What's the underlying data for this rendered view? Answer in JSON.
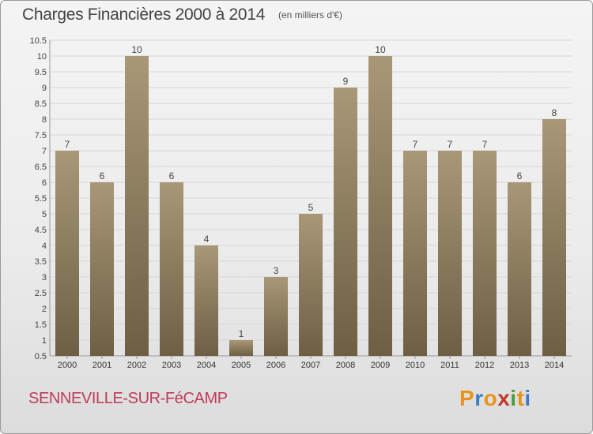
{
  "header": {
    "title": "Charges Financières 2000 à 2014",
    "subtitle": "(en milliers d'€)"
  },
  "footer": {
    "commune": "SENNEVILLE-SUR-FéCAMP",
    "logo_text": "Proxiti"
  },
  "colors": {
    "bar_top": "#a89878",
    "bar_bottom": "#6e5e43",
    "commune_text": "#c03a5a",
    "logo_letters": [
      "#e8941c",
      "#3a7fc4",
      "#e8941c",
      "#c0392b",
      "#4a9e3a",
      "#e8941c",
      "#3a7fc4"
    ]
  },
  "chart_data": {
    "type": "bar",
    "title": "Charges Financières 2000 à 2014",
    "subtitle": "(en milliers d'€)",
    "categories": [
      "2000",
      "2001",
      "2002",
      "2003",
      "2004",
      "2005",
      "2006",
      "2007",
      "2008",
      "2009",
      "2010",
      "2011",
      "2012",
      "2013",
      "2014"
    ],
    "values": [
      7,
      6,
      10,
      6,
      4,
      1,
      3,
      5,
      9,
      10,
      7,
      7,
      7,
      6,
      8
    ],
    "data_labels": [
      "7",
      "6",
      "10",
      "6",
      "4",
      "1",
      "3",
      "5",
      "9",
      "10",
      "7",
      "7",
      "7",
      "6",
      "8"
    ],
    "ylim": [
      0.5,
      10.5
    ],
    "yticks": [
      0.5,
      1,
      1.5,
      2,
      2.5,
      3,
      3.5,
      4,
      4.5,
      5,
      5.5,
      6,
      6.5,
      7,
      7.5,
      8,
      8.5,
      9,
      9.5,
      10,
      10.5
    ],
    "ytick_labels": [
      "0.5",
      "1",
      "1.5",
      "2",
      "2.5",
      "3",
      "3.5",
      "4",
      "4.5",
      "5",
      "5.5",
      "6",
      "6.5",
      "7",
      "7.5",
      "8",
      "8.5",
      "9",
      "9.5",
      "10",
      "10.5"
    ],
    "grid": true,
    "legend": "none"
  }
}
